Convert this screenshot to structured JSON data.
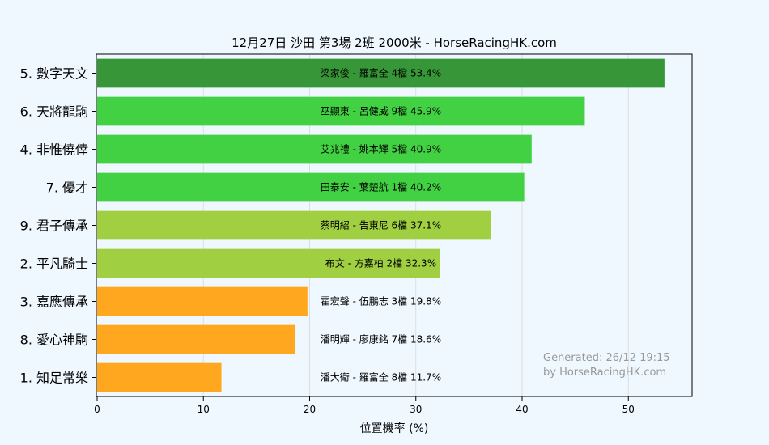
{
  "chart_data": {
    "type": "bar",
    "orientation": "horizontal",
    "title": "12月27日  沙田  第3場  2班  2000米 - HorseRacingHK.com",
    "xlabel": "位置機率 (%)",
    "ylabel": "",
    "xlim": [
      0,
      56
    ],
    "xticks": [
      0,
      10,
      20,
      30,
      40,
      50
    ],
    "grid": true,
    "categories": [
      "5. 數字天文",
      "6. 天將龍駒",
      "4. 非惟僥倖",
      "7. 優才",
      "9. 君子傳承",
      "2. 平凡騎士",
      "3. 嘉應傳承",
      "8. 愛心神駒",
      "1. 知足常樂"
    ],
    "values": [
      53.4,
      45.9,
      40.9,
      40.2,
      37.1,
      32.3,
      19.8,
      18.6,
      11.7
    ],
    "bar_labels": [
      "梁家俊 - 羅富全 4檔  53.4%",
      "巫顯東 - 呂健威 9檔  45.9%",
      "艾兆禮 - 姚本輝 5檔  40.9%",
      "田泰安 - 葉楚航 1檔  40.2%",
      "蔡明紹 - 告東尼 6檔  37.1%",
      "布文 - 方嘉柏 2檔  32.3%",
      "霍宏聲 - 伍鵬志 3檔  19.8%",
      "潘明輝 - 廖康銘 7檔  18.6%",
      "潘大衛 - 羅富全 8檔  11.7%"
    ],
    "colors": [
      "#379637",
      "#42d142",
      "#42d142",
      "#42d142",
      "#a0d042",
      "#a0d042",
      "#ffa81f",
      "#ffa81f",
      "#ffa81f"
    ]
  },
  "footer": {
    "generated": "Generated: 26/12 19:15",
    "source": "by HorseRacingHK.com"
  },
  "style": {
    "background": "#f0f8ff",
    "grid_color": "#dddddd"
  }
}
